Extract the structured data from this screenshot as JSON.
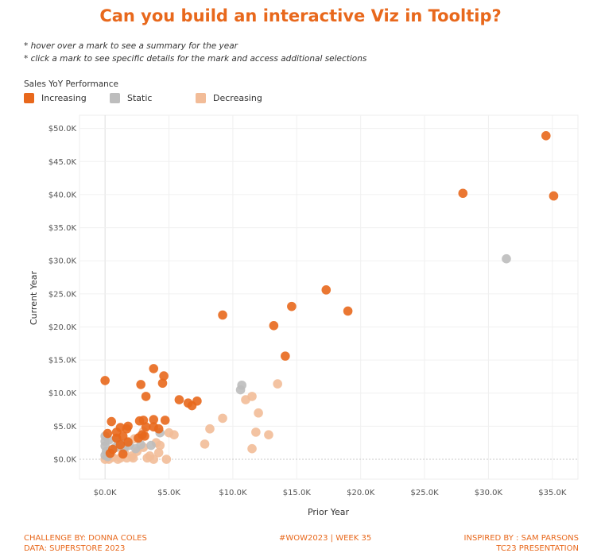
{
  "title": "Can you build an interactive Viz in Tooltip?",
  "notes": [
    "* hover over a mark to see a summary for the year",
    "* click a mark to see specific details for the mark and access additional selections"
  ],
  "legend": {
    "title": "Sales YoY Performance",
    "items": [
      {
        "label": "Increasing",
        "color": "#E8681C"
      },
      {
        "label": "Static",
        "color": "#BDBDBD"
      },
      {
        "label": "Decreasing",
        "color": "#F2BC98"
      }
    ]
  },
  "footer": {
    "left_line1": "CHALLENGE BY: DONNA COLES",
    "left_line2": "DATA: SUPERSTORE 2023",
    "middle": "#WOW2023  | WEEK 35",
    "right_line1": "INSPIRED BY : SAM PARSONS",
    "right_line2": "TC23 PRESENTATION"
  },
  "chart_data": {
    "type": "scatter",
    "title": "",
    "xlabel": "Prior Year",
    "ylabel": "Current Year",
    "xlim": [
      -2000,
      37000
    ],
    "ylim": [
      -3000,
      52000
    ],
    "x_ticks": [
      0,
      5000,
      10000,
      15000,
      20000,
      25000,
      30000,
      35000
    ],
    "x_tick_labels": [
      "$0.0K",
      "$5.0K",
      "$10.0K",
      "$15.0K",
      "$20.0K",
      "$25.0K",
      "$30.0K",
      "$35.0K"
    ],
    "y_ticks": [
      0,
      5000,
      10000,
      15000,
      20000,
      25000,
      30000,
      35000,
      40000,
      45000,
      50000
    ],
    "y_tick_labels": [
      "$0.0K",
      "$5.0K",
      "$10.0K",
      "$15.0K",
      "$20.0K",
      "$25.0K",
      "$30.0K",
      "$35.0K",
      "$40.0K",
      "$45.0K",
      "$50.0K"
    ],
    "grid": true,
    "colors": {
      "Increasing": "#E8681C",
      "Static": "#BDBDBD",
      "Decreasing": "#F2BC98"
    },
    "series": [
      {
        "name": "Decreasing",
        "points": [
          [
            11000,
            9000
          ],
          [
            11500,
            9500
          ],
          [
            13500,
            11400
          ],
          [
            12000,
            7000
          ],
          [
            11800,
            4100
          ],
          [
            12800,
            3700
          ],
          [
            11500,
            1600
          ],
          [
            9200,
            6200
          ],
          [
            8200,
            4600
          ],
          [
            7800,
            2300
          ],
          [
            5000,
            4000
          ],
          [
            5400,
            3700
          ],
          [
            4800,
            0
          ],
          [
            4300,
            2100
          ],
          [
            4000,
            2500
          ],
          [
            3500,
            500
          ],
          [
            3800,
            0
          ],
          [
            3300,
            200
          ],
          [
            3000,
            1800
          ],
          [
            4200,
            1000
          ],
          [
            3000,
            4200
          ],
          [
            2700,
            3400
          ],
          [
            2300,
            3100
          ],
          [
            2100,
            500
          ],
          [
            1800,
            2700
          ],
          [
            1500,
            1100
          ],
          [
            1200,
            200
          ],
          [
            1000,
            0
          ],
          [
            600,
            300
          ],
          [
            300,
            0
          ],
          [
            1700,
            200
          ],
          [
            0,
            0
          ],
          [
            900,
            1800
          ],
          [
            2500,
            1200
          ],
          [
            2200,
            200
          ]
        ]
      },
      {
        "name": "Static",
        "points": [
          [
            31400,
            30300
          ],
          [
            10700,
            11200
          ],
          [
            10600,
            10500
          ],
          [
            4300,
            4000
          ],
          [
            0,
            3500
          ],
          [
            0,
            2700
          ],
          [
            0,
            2000
          ],
          [
            100,
            1200
          ],
          [
            0,
            600
          ],
          [
            200,
            400
          ],
          [
            800,
            1800
          ],
          [
            1200,
            2400
          ],
          [
            1500,
            1700
          ],
          [
            1900,
            2100
          ],
          [
            2400,
            1600
          ],
          [
            2800,
            2200
          ],
          [
            3600,
            2100
          ],
          [
            900,
            3100
          ],
          [
            300,
            2900
          ]
        ]
      },
      {
        "name": "Increasing",
        "points": [
          [
            34500,
            48900
          ],
          [
            35100,
            39800
          ],
          [
            28000,
            40200
          ],
          [
            17300,
            25600
          ],
          [
            19000,
            22400
          ],
          [
            14600,
            23100
          ],
          [
            13200,
            20200
          ],
          [
            14100,
            15600
          ],
          [
            9200,
            21800
          ],
          [
            0,
            11900
          ],
          [
            4600,
            12600
          ],
          [
            4500,
            11500
          ],
          [
            3800,
            13700
          ],
          [
            2800,
            11300
          ],
          [
            3200,
            9500
          ],
          [
            5800,
            9000
          ],
          [
            6500,
            8500
          ],
          [
            6800,
            8100
          ],
          [
            7200,
            8800
          ],
          [
            4700,
            5900
          ],
          [
            3800,
            6000
          ],
          [
            3000,
            5900
          ],
          [
            2700,
            5800
          ],
          [
            3800,
            4900
          ],
          [
            4200,
            4600
          ],
          [
            3200,
            4900
          ],
          [
            1800,
            5000
          ],
          [
            1200,
            4800
          ],
          [
            500,
            5700
          ],
          [
            2900,
            3700
          ],
          [
            3100,
            3500
          ],
          [
            2600,
            3200
          ],
          [
            1400,
            3500
          ],
          [
            900,
            3200
          ],
          [
            1800,
            2600
          ],
          [
            1200,
            2200
          ],
          [
            600,
            1500
          ],
          [
            1400,
            800
          ],
          [
            400,
            900
          ],
          [
            200,
            3900
          ],
          [
            900,
            4100
          ],
          [
            1700,
            4600
          ]
        ]
      }
    ]
  }
}
